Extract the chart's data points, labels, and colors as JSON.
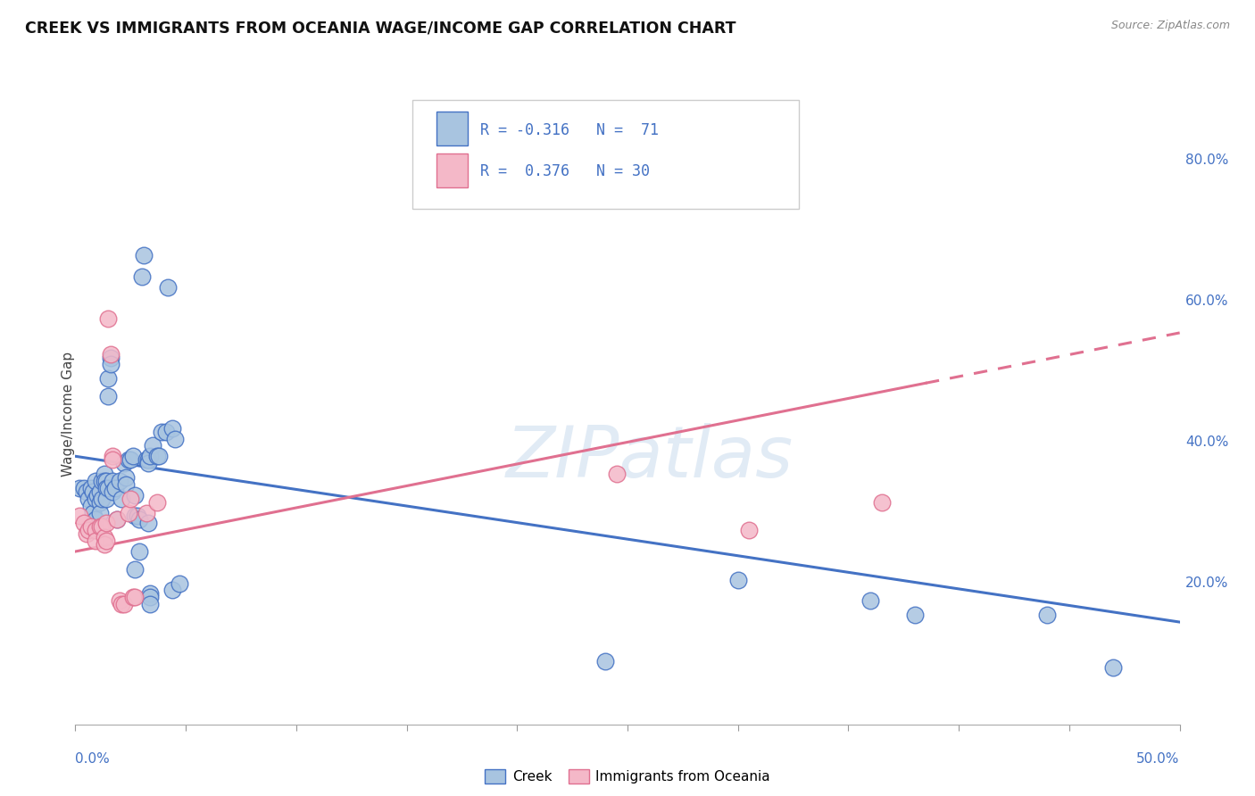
{
  "title": "CREEK VS IMMIGRANTS FROM OCEANIA WAGE/INCOME GAP CORRELATION CHART",
  "source": "Source: ZipAtlas.com",
  "ylabel": "Wage/Income Gap",
  "right_yticks": [
    "20.0%",
    "40.0%",
    "60.0%",
    "80.0%"
  ],
  "right_ytick_vals": [
    0.2,
    0.4,
    0.6,
    0.8
  ],
  "xlim": [
    0.0,
    0.5
  ],
  "ylim": [
    0.0,
    0.88
  ],
  "watermark": "ZIPatlas",
  "creek_color": "#a8c4e0",
  "creek_edge_color": "#4472c4",
  "oceania_color": "#f4b8c8",
  "oceania_edge_color": "#e07090",
  "creek_scatter": [
    [
      0.002,
      0.335
    ],
    [
      0.004,
      0.335
    ],
    [
      0.005,
      0.33
    ],
    [
      0.006,
      0.32
    ],
    [
      0.007,
      0.335
    ],
    [
      0.007,
      0.31
    ],
    [
      0.008,
      0.33
    ],
    [
      0.008,
      0.3
    ],
    [
      0.009,
      0.345
    ],
    [
      0.009,
      0.32
    ],
    [
      0.009,
      0.29
    ],
    [
      0.01,
      0.325
    ],
    [
      0.011,
      0.33
    ],
    [
      0.011,
      0.315
    ],
    [
      0.011,
      0.3
    ],
    [
      0.012,
      0.345
    ],
    [
      0.012,
      0.32
    ],
    [
      0.013,
      0.355
    ],
    [
      0.013,
      0.345
    ],
    [
      0.014,
      0.345
    ],
    [
      0.014,
      0.335
    ],
    [
      0.014,
      0.32
    ],
    [
      0.015,
      0.335
    ],
    [
      0.015,
      0.49
    ],
    [
      0.015,
      0.465
    ],
    [
      0.016,
      0.52
    ],
    [
      0.016,
      0.51
    ],
    [
      0.017,
      0.345
    ],
    [
      0.017,
      0.33
    ],
    [
      0.018,
      0.335
    ],
    [
      0.019,
      0.29
    ],
    [
      0.02,
      0.345
    ],
    [
      0.021,
      0.32
    ],
    [
      0.022,
      0.37
    ],
    [
      0.023,
      0.35
    ],
    [
      0.023,
      0.34
    ],
    [
      0.024,
      0.375
    ],
    [
      0.025,
      0.375
    ],
    [
      0.026,
      0.38
    ],
    [
      0.027,
      0.295
    ],
    [
      0.027,
      0.325
    ],
    [
      0.027,
      0.22
    ],
    [
      0.028,
      0.295
    ],
    [
      0.029,
      0.29
    ],
    [
      0.029,
      0.245
    ],
    [
      0.03,
      0.635
    ],
    [
      0.031,
      0.665
    ],
    [
      0.032,
      0.375
    ],
    [
      0.033,
      0.375
    ],
    [
      0.033,
      0.37
    ],
    [
      0.033,
      0.285
    ],
    [
      0.034,
      0.38
    ],
    [
      0.034,
      0.185
    ],
    [
      0.034,
      0.18
    ],
    [
      0.034,
      0.17
    ],
    [
      0.035,
      0.395
    ],
    [
      0.037,
      0.38
    ],
    [
      0.038,
      0.38
    ],
    [
      0.039,
      0.415
    ],
    [
      0.041,
      0.415
    ],
    [
      0.042,
      0.62
    ],
    [
      0.044,
      0.42
    ],
    [
      0.044,
      0.19
    ],
    [
      0.045,
      0.405
    ],
    [
      0.047,
      0.2
    ],
    [
      0.24,
      0.09
    ],
    [
      0.3,
      0.205
    ],
    [
      0.36,
      0.175
    ],
    [
      0.38,
      0.155
    ],
    [
      0.44,
      0.155
    ],
    [
      0.47,
      0.08
    ]
  ],
  "oceania_scatter": [
    [
      0.002,
      0.295
    ],
    [
      0.004,
      0.285
    ],
    [
      0.005,
      0.27
    ],
    [
      0.006,
      0.275
    ],
    [
      0.007,
      0.28
    ],
    [
      0.009,
      0.275
    ],
    [
      0.009,
      0.26
    ],
    [
      0.011,
      0.28
    ],
    [
      0.012,
      0.28
    ],
    [
      0.013,
      0.265
    ],
    [
      0.013,
      0.255
    ],
    [
      0.014,
      0.285
    ],
    [
      0.014,
      0.26
    ],
    [
      0.015,
      0.575
    ],
    [
      0.016,
      0.525
    ],
    [
      0.017,
      0.38
    ],
    [
      0.017,
      0.375
    ],
    [
      0.019,
      0.29
    ],
    [
      0.02,
      0.175
    ],
    [
      0.021,
      0.17
    ],
    [
      0.022,
      0.17
    ],
    [
      0.024,
      0.3
    ],
    [
      0.025,
      0.32
    ],
    [
      0.026,
      0.18
    ],
    [
      0.027,
      0.18
    ],
    [
      0.032,
      0.3
    ],
    [
      0.037,
      0.315
    ],
    [
      0.245,
      0.355
    ],
    [
      0.305,
      0.275
    ],
    [
      0.365,
      0.315
    ]
  ],
  "creek_line": {
    "x0": 0.0,
    "x1": 0.5,
    "y0": 0.38,
    "y1": 0.145
  },
  "oceania_line": {
    "x0": 0.0,
    "x1": 0.5,
    "y0": 0.245,
    "y1": 0.555
  },
  "oceania_dashed_from": 0.385
}
